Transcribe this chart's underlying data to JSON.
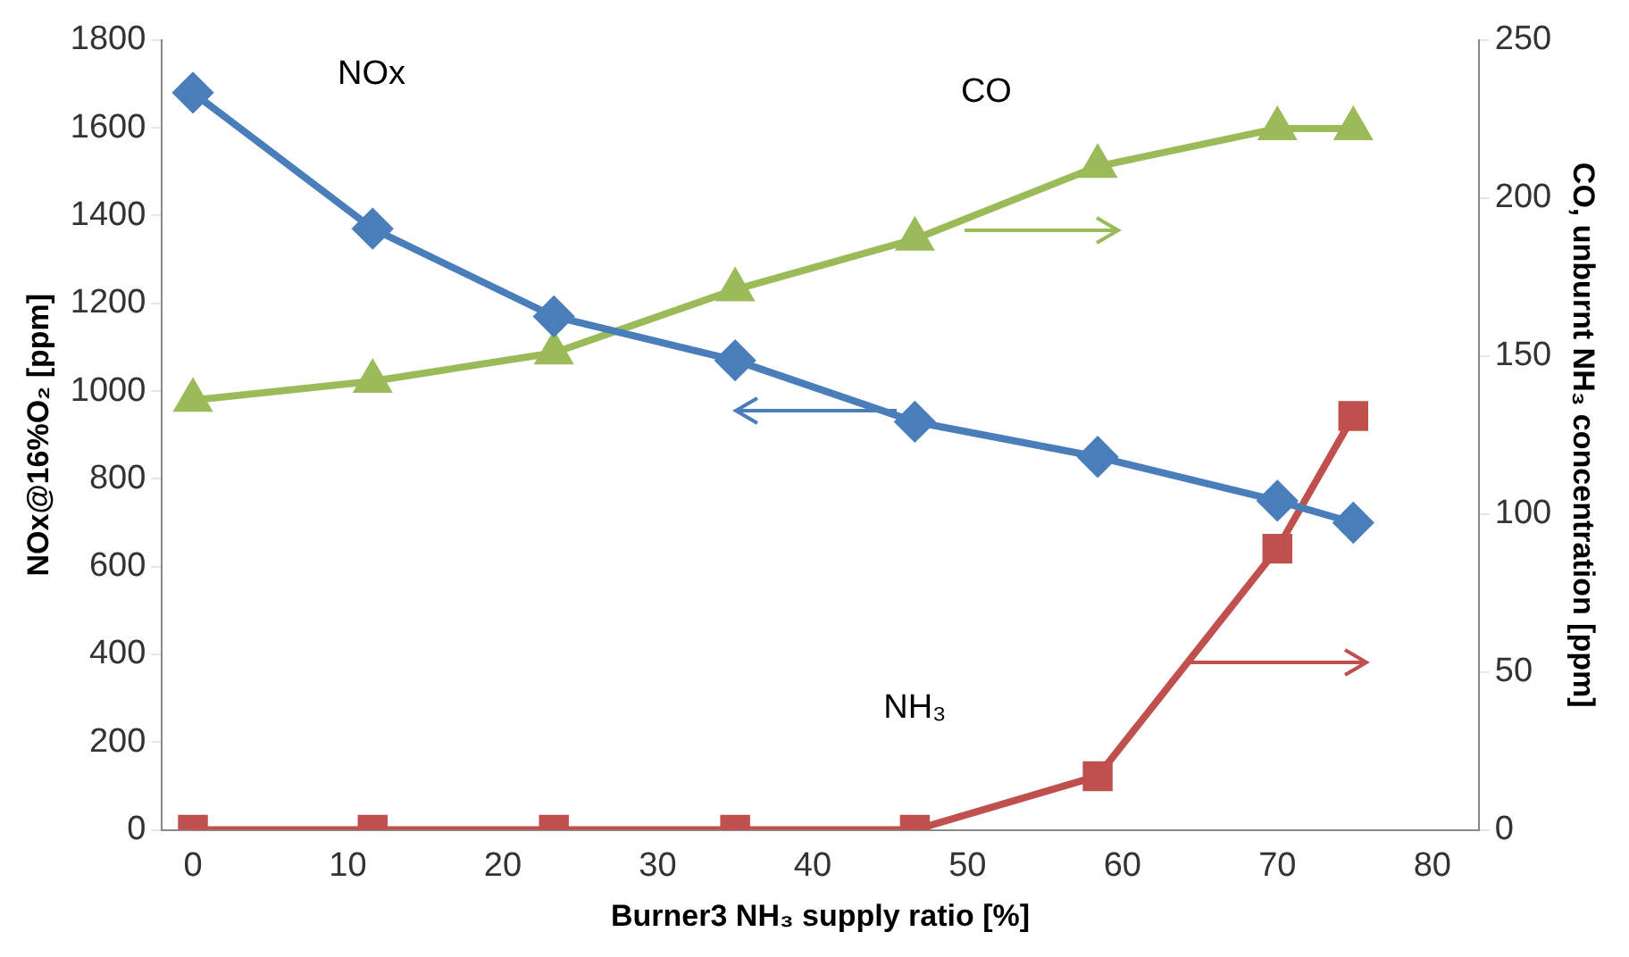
{
  "chart_data": {
    "type": "line",
    "xlabel": "Burner3 NH₃ supply ratio [%]",
    "ylabel": "NOx@16%O₂ [ppm]",
    "y2label": "CO, unburnt NH₃ concentration [ppm]",
    "x": [
      0,
      11.6,
      23.3,
      35,
      46.6,
      58.4,
      70,
      74.9
    ],
    "series": [
      {
        "name": "NOx",
        "color": "#4a7ebb",
        "marker": "diamond",
        "values": [
          1680,
          1370,
          1170,
          1070,
          930,
          850,
          750,
          700
        ]
      },
      {
        "name": "CO",
        "color": "#9bbb59",
        "marker": "triangle",
        "axis": "y2",
        "values": [
          136,
          142,
          151,
          171,
          187,
          210,
          222,
          222
        ]
      },
      {
        "name": "NH₃",
        "color": "#c0504d",
        "marker": "square",
        "axis": "y2",
        "values": [
          0,
          0,
          0,
          0,
          0,
          17,
          89,
          131
        ]
      }
    ],
    "xlim": [
      -2,
      83
    ],
    "xticks": [
      0,
      10,
      20,
      30,
      40,
      50,
      60,
      70,
      80
    ],
    "ylim": [
      0,
      1800
    ],
    "yticks": [
      0,
      200,
      400,
      600,
      800,
      1000,
      1200,
      1400,
      1600,
      1800
    ],
    "y2lim": [
      0,
      250
    ],
    "y2ticks": [
      0,
      50,
      100,
      150,
      200,
      250
    ],
    "grid": false,
    "legend": false,
    "line_style": "solid"
  }
}
